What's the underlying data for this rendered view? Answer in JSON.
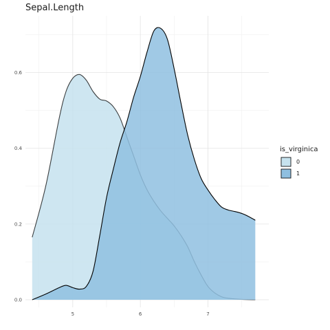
{
  "chart_data": {
    "type": "area",
    "title": "Sepal.Length",
    "xlabel": "",
    "ylabel": "",
    "xlim": [
      4.3,
      7.9
    ],
    "ylim": [
      -0.02,
      0.75
    ],
    "x_ticks": [
      "5",
      "6",
      "7"
    ],
    "y_ticks": [
      "0.0",
      "0.2",
      "0.4",
      "0.6"
    ],
    "grid": true,
    "legend": {
      "title": "is_virginica",
      "placement": "right",
      "entries": [
        "0",
        "1"
      ]
    },
    "series": [
      {
        "name": "0",
        "color": "#c6e2ee",
        "x": [
          4.4,
          4.6,
          4.8,
          4.9,
          5.0,
          5.1,
          5.2,
          5.3,
          5.4,
          5.5,
          5.6,
          5.7,
          5.8,
          5.9,
          6.0,
          6.1,
          6.2,
          6.3,
          6.4,
          6.5,
          6.6,
          6.7,
          6.8,
          6.9,
          7.0,
          7.1,
          7.2,
          7.3,
          7.5,
          7.7
        ],
        "y": [
          0.165,
          0.3,
          0.48,
          0.55,
          0.585,
          0.595,
          0.58,
          0.55,
          0.53,
          0.525,
          0.51,
          0.48,
          0.43,
          0.38,
          0.33,
          0.29,
          0.26,
          0.235,
          0.215,
          0.195,
          0.17,
          0.14,
          0.1,
          0.065,
          0.035,
          0.018,
          0.008,
          0.004,
          0.001,
          0.0
        ]
      },
      {
        "name": "1",
        "color": "#8fbfe0",
        "x": [
          4.4,
          4.6,
          4.8,
          4.9,
          5.0,
          5.1,
          5.2,
          5.3,
          5.4,
          5.5,
          5.6,
          5.7,
          5.8,
          5.9,
          6.0,
          6.1,
          6.2,
          6.3,
          6.4,
          6.5,
          6.6,
          6.7,
          6.8,
          6.9,
          7.0,
          7.1,
          7.2,
          7.3,
          7.4,
          7.5,
          7.6,
          7.7
        ],
        "y": [
          0.0,
          0.015,
          0.032,
          0.038,
          0.032,
          0.028,
          0.035,
          0.075,
          0.17,
          0.27,
          0.345,
          0.415,
          0.47,
          0.535,
          0.59,
          0.655,
          0.71,
          0.717,
          0.688,
          0.61,
          0.52,
          0.435,
          0.37,
          0.32,
          0.29,
          0.265,
          0.245,
          0.237,
          0.233,
          0.228,
          0.22,
          0.21
        ]
      }
    ]
  }
}
